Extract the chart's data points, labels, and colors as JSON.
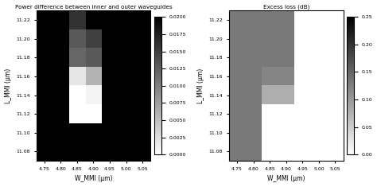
{
  "W_MMI": [
    4.75,
    4.8,
    4.85,
    4.9,
    4.95,
    5.0,
    5.05
  ],
  "L_MMI": [
    11.22,
    11.2,
    11.18,
    11.16,
    11.14,
    11.12,
    11.1,
    11.08
  ],
  "plot1_title": "Power difference between inner and outer waveguides",
  "plot2_title": "Excess loss (dB)",
  "xlabel": "W_MMI (μm)",
  "ylabel": "L_MMI (μm)",
  "plot1_vmin": 0.0,
  "plot1_vmax": 0.02,
  "plot2_vmin": 0.0,
  "plot2_vmax": 0.25,
  "plot1_data": [
    [
      0.02,
      0.02,
      0.016,
      0.02,
      0.02,
      0.02,
      0.02
    ],
    [
      0.02,
      0.02,
      0.013,
      0.015,
      0.02,
      0.02,
      0.02
    ],
    [
      0.02,
      0.02,
      0.012,
      0.013,
      0.02,
      0.02,
      0.02
    ],
    [
      0.02,
      0.02,
      0.002,
      0.006,
      0.02,
      0.02,
      0.02
    ],
    [
      0.02,
      0.02,
      0.0,
      0.001,
      0.02,
      0.02,
      0.02
    ],
    [
      0.02,
      0.02,
      0.0,
      0.0,
      0.02,
      0.02,
      0.02
    ],
    [
      0.02,
      0.02,
      0.02,
      0.02,
      0.02,
      0.02,
      0.02
    ],
    [
      0.02,
      0.02,
      0.02,
      0.02,
      0.02,
      0.02,
      0.02
    ]
  ],
  "plot2_data": [
    [
      0.13,
      0.13,
      0.13,
      0.13,
      0.0,
      0.0,
      0.0
    ],
    [
      0.13,
      0.13,
      0.13,
      0.13,
      0.0,
      0.0,
      0.0
    ],
    [
      0.13,
      0.13,
      0.13,
      0.13,
      0.0,
      0.0,
      0.0
    ],
    [
      0.13,
      0.13,
      0.12,
      0.12,
      0.0,
      0.0,
      0.0
    ],
    [
      0.13,
      0.13,
      0.08,
      0.08,
      0.0,
      0.0,
      0.0
    ],
    [
      0.13,
      0.13,
      0.0,
      0.0,
      0.0,
      0.0,
      0.0
    ],
    [
      0.13,
      0.13,
      0.0,
      0.0,
      0.0,
      0.0,
      0.0
    ],
    [
      0.13,
      0.13,
      0.0,
      0.0,
      0.0,
      0.0,
      0.0
    ]
  ],
  "yticks": [
    11.08,
    11.1,
    11.12,
    11.14,
    11.16,
    11.18,
    11.2,
    11.22
  ],
  "xticks": [
    4.75,
    4.8,
    4.85,
    4.9,
    4.95,
    5.0,
    5.05
  ],
  "plot1_cbar_ticks": [
    0.0,
    0.0025,
    0.005,
    0.0075,
    0.01,
    0.0125,
    0.015,
    0.0175,
    0.02
  ],
  "plot2_cbar_ticks": [
    0.0,
    0.05,
    0.1,
    0.15,
    0.2,
    0.25
  ]
}
